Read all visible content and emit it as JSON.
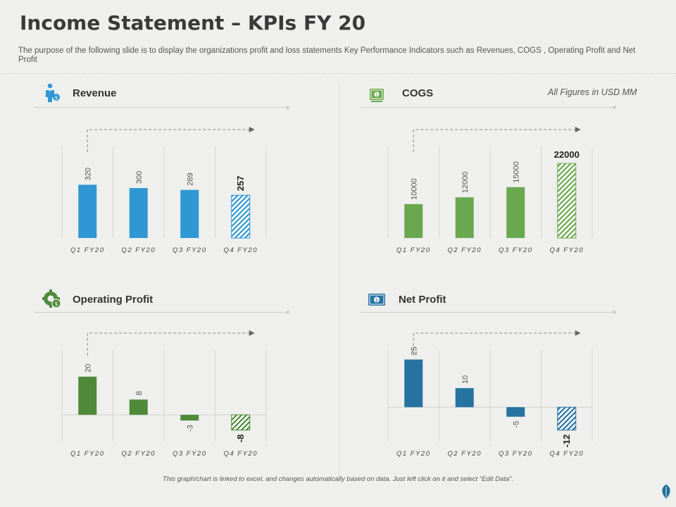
{
  "header": {
    "title": "Income Statement – KPIs FY 20",
    "subtitle": "The purpose of the following slide is to display the organizations profit and loss statements Key Performance Indicators such as Revenues, COGS , Operating Profit and Net Profit"
  },
  "note": "All Figures in USD MM",
  "footer": "This graph/chart is linked to excel, and changes automatically based on data. Just left click on it and select “Edit Data”.",
  "sections": [
    {
      "title": "Revenue",
      "icon": "person-money-icon",
      "color": "#2f97d3"
    },
    {
      "title": "COGS",
      "icon": "cash-icon",
      "color": "#6aa84f"
    },
    {
      "title": "Operating Profit",
      "icon": "gear-money-icon",
      "color": "#4f8a3a"
    },
    {
      "title": "Net Profit",
      "icon": "cash-chart-icon",
      "color": "#2673a2"
    }
  ],
  "chart_data": [
    {
      "type": "bar",
      "title": "Revenue",
      "categories": [
        "Q1 FY20",
        "Q2 FY20",
        "Q3 FY20",
        "Q4 FY20"
      ],
      "values": [
        320,
        300,
        289,
        257
      ],
      "ylim": [
        0,
        550
      ],
      "color": "#2f97d3",
      "highlight_last": true
    },
    {
      "type": "bar",
      "title": "COGS",
      "categories": [
        "Q1 FY20",
        "Q2 FY20",
        "Q3 FY20",
        "Q4 FY20"
      ],
      "values": [
        10000,
        12000,
        15000,
        22000
      ],
      "ylim": [
        0,
        27000
      ],
      "color": "#6aa84f",
      "highlight_last": true
    },
    {
      "type": "bar",
      "title": "Operating Profit",
      "categories": [
        "Q1 FY20",
        "Q2 FY20",
        "Q3 FY20",
        "Q4 FY20"
      ],
      "values": [
        20,
        8,
        -3,
        -8
      ],
      "ylim": [
        -14,
        34
      ],
      "color": "#4f8a3a",
      "highlight_last": true
    },
    {
      "type": "bar",
      "title": "Net Profit",
      "categories": [
        "Q1 FY20",
        "Q2 FY20",
        "Q3 FY20",
        "Q4 FY20"
      ],
      "values": [
        25,
        10,
        -5,
        -12
      ],
      "ylim": [
        -18,
        30
      ],
      "color": "#2673a2",
      "highlight_last": true
    }
  ]
}
